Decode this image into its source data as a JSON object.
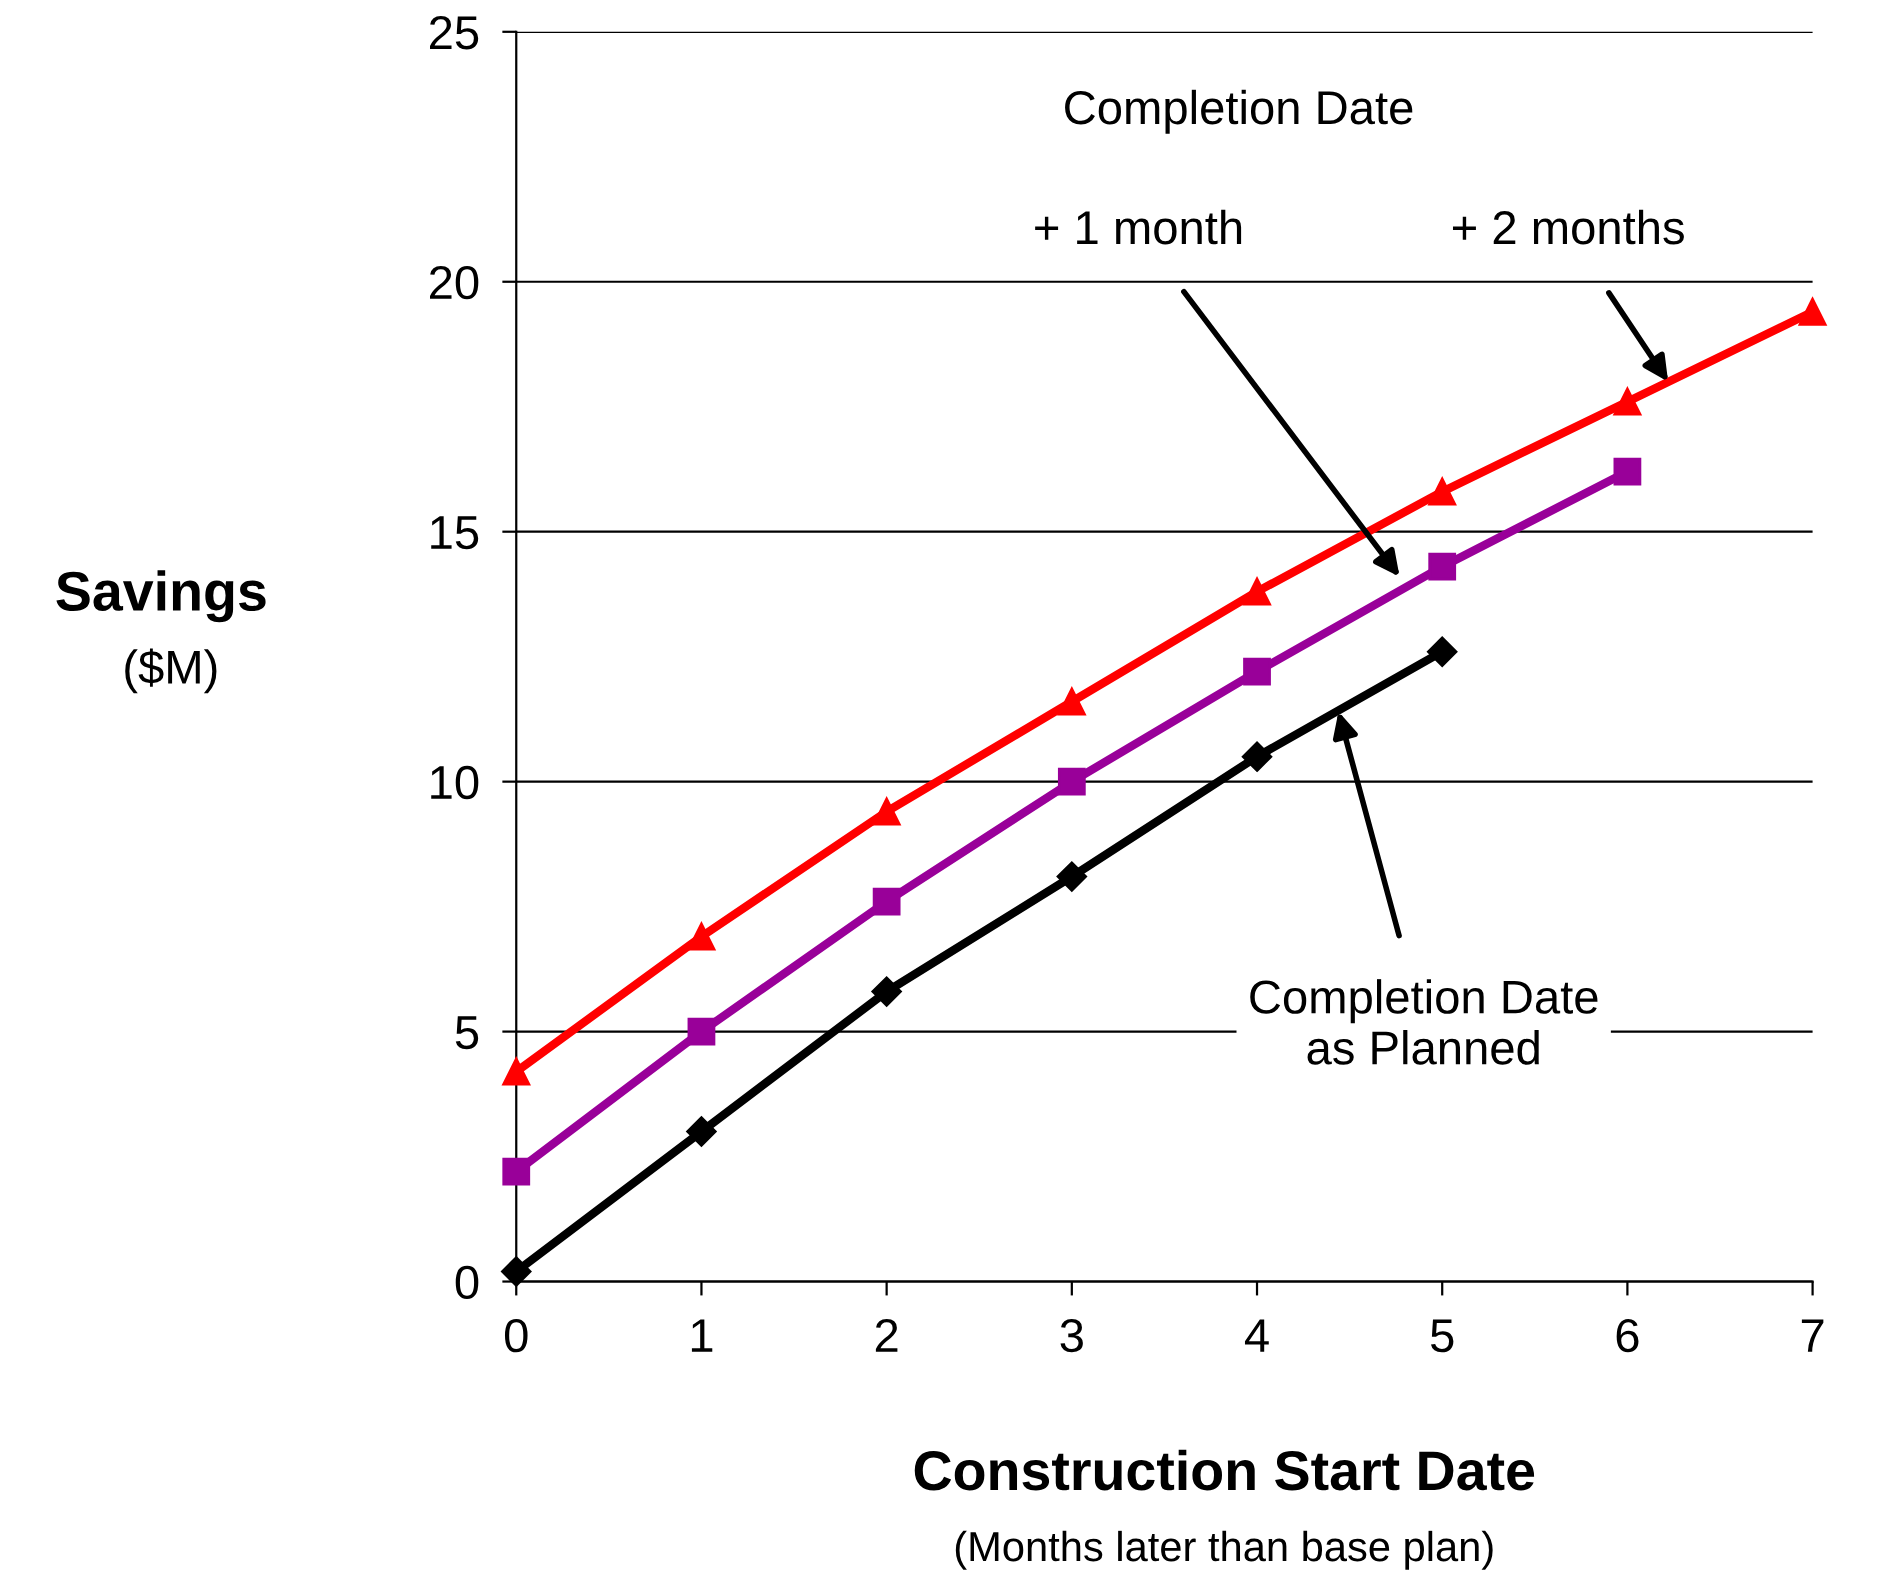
{
  "chart_data": {
    "type": "line",
    "xlabel": "Construction Start Date\n(Months later than base plan)",
    "ylabel": "Savings\n($M)",
    "series": [
      {
        "color": "#000000",
        "marker": "diamond",
        "x": [
          0,
          1,
          2,
          3,
          4,
          5
        ],
        "values": [
          0.2,
          3.0,
          5.8,
          8.1,
          10.5,
          12.6
        ]
      },
      {
        "color": "#990099",
        "marker": "square",
        "x": [
          0,
          1,
          2,
          3,
          4,
          5,
          6
        ],
        "values": [
          2.2,
          5.0,
          7.6,
          10.0,
          12.2,
          14.3,
          16.2
        ]
      },
      {
        "color": "#ff0000",
        "marker": "triangle",
        "x": [
          0,
          1,
          2,
          3,
          4,
          5,
          6,
          7
        ],
        "values": [
          4.2,
          6.9,
          9.4,
          11.6,
          13.8,
          15.8,
          17.6,
          19.4
        ]
      }
    ],
    "annotations": [
      "Completion Date",
      {
        "text": "+ 1 month",
        "x": 4.77,
        "y": 14.1
      },
      {
        "text": "+ 2 months",
        "x": 6.22,
        "y": 18.0
      },
      {
        "text": "Completion Date\nas Planned",
        "x": 4.44,
        "y": 11.4
      }
    ],
    "xlim": [
      0,
      7
    ],
    "xticks": [
      0,
      1,
      2,
      3,
      4,
      5,
      6,
      7
    ],
    "ylim": [
      0,
      25
    ],
    "yticks": [
      0,
      5,
      10,
      15,
      20,
      25
    ],
    "grid": "y",
    "line_style": "solid"
  }
}
